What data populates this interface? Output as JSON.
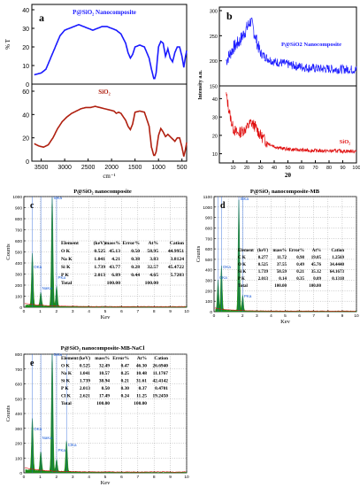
{
  "colors": {
    "nanocomposite": "#1a1aff",
    "sio2": "#b02010",
    "xrd_red": "#e01010",
    "eds_fill": "#1a8a1a",
    "eds_base": "#e01010",
    "peak_label": "#1a5ad8"
  },
  "chart_data": [
    {
      "id": "a",
      "type": "line",
      "panel_label": "a",
      "xlabel": "cm⁻¹",
      "ylabel": "% T",
      "xlim": [
        3700,
        400
      ],
      "x_ticks": [
        "3500",
        "3000",
        "2500",
        "2000",
        "1500",
        "1000",
        "500"
      ],
      "upper": {
        "label": "P@SiO₂ Nanocomposite",
        "ylim": [
          0,
          40
        ],
        "y_ticks": [
          "0",
          "10",
          "20",
          "30",
          "40"
        ],
        "series": [
          {
            "x": [
              3650,
              3500,
              3400,
              3300,
              3200,
              3100,
              3000,
              2900,
              2800,
              2700,
              2600,
              2500,
              2400,
              2300,
              2200,
              2100,
              2000,
              1900,
              1800,
              1700,
              1650,
              1600,
              1550,
              1500,
              1400,
              1300,
              1200,
              1150,
              1100,
              1080,
              1050,
              1000,
              950,
              900,
              850,
              800,
              750,
              700,
              650,
              600,
              550,
              500,
              460,
              430,
              400
            ],
            "y": [
              5,
              6,
              8,
              14,
              20,
              26,
              29,
              30,
              31,
              32,
              31,
              30,
              29,
              30,
              31,
              31,
              30,
              29,
              27,
              22,
              17,
              14,
              16,
              20,
              21,
              20,
              14,
              8,
              3,
              3,
              6,
              20,
              23,
              22,
              15,
              19,
              14,
              12,
              17,
              20,
              20,
              15,
              9,
              14,
              18
            ]
          }
        ]
      },
      "lower": {
        "label": "SiO₂",
        "ylim": [
          0,
          60
        ],
        "y_ticks": [
          "0",
          "20",
          "40",
          "60"
        ],
        "series": [
          {
            "x": [
              3650,
              3550,
              3450,
              3350,
              3250,
              3150,
              3050,
              2950,
              2850,
              2750,
              2650,
              2550,
              2450,
              2350,
              2250,
              2150,
              2050,
              1950,
              1900,
              1850,
              1800,
              1750,
              1700,
              1650,
              1600,
              1550,
              1500,
              1400,
              1300,
              1200,
              1150,
              1100,
              1080,
              1050,
              1000,
              950,
              900,
              850,
              800,
              750,
              700,
              650,
              600,
              550,
              500,
              460,
              430,
              400
            ],
            "y": [
              15,
              13,
              12,
              14,
              20,
              28,
              34,
              38,
              41,
              43,
              45,
              46,
              46,
              47,
              46,
              45,
              44,
              43,
              41,
              42,
              41,
              38,
              35,
              30,
              27,
              32,
              42,
              43,
              42,
              30,
              12,
              5,
              5,
              8,
              22,
              28,
              25,
              21,
              23,
              21,
              19,
              17,
              20,
              20,
              12,
              4,
              9,
              16
            ]
          }
        ]
      }
    },
    {
      "id": "b",
      "type": "line",
      "panel_label": "b",
      "xlabel": "2θ",
      "ylabel": "Intensity a.u.",
      "xlim": [
        0,
        100
      ],
      "x_ticks": [
        "10",
        "20",
        "30",
        "40",
        "50",
        "60",
        "70",
        "80",
        "90",
        "100"
      ],
      "upper": {
        "label": "P@SiO2 Nanocomposite",
        "y_ticks": [
          "150",
          "200",
          "250",
          "300"
        ],
        "series": [
          {
            "x": [
              5,
              10,
              15,
              20,
              23,
              25,
              28,
              30,
              35,
              40,
              45,
              50,
              55,
              60,
              65,
              70,
              75,
              80,
              85,
              90,
              95,
              100
            ],
            "y": [
              200,
              225,
              240,
              265,
              280,
              260,
              232,
              215,
              205,
              198,
              196,
              193,
              190,
              188,
              186,
              185,
              184,
              184,
              183,
              183,
              183,
              182
            ]
          }
        ]
      },
      "lower": {
        "label": "SiO₂",
        "y_ticks": [
          "10",
          "20",
          "30",
          "40"
        ],
        "series": [
          {
            "x": [
              5,
              8,
              10,
              13,
              16,
              20,
              23,
              26,
              30,
              35,
              40,
              45,
              50,
              55,
              60,
              65,
              70,
              75,
              80,
              85,
              90,
              95,
              100
            ],
            "y": [
              42,
              30,
              24,
              21,
              22,
              24,
              27,
              25,
              20,
              16,
              14,
              13,
              12.5,
              12.2,
              12,
              11.8,
              11.7,
              11.6,
              11.5,
              11.5,
              11.4,
              11.4,
              11.4
            ]
          }
        ]
      }
    },
    {
      "id": "c",
      "type": "bar",
      "panel_label": "c",
      "title": "P@SiO₂ nanocomposite",
      "xlabel": "Kev",
      "ylabel": "Counts",
      "xlim": [
        0,
        10
      ],
      "ylim": [
        0,
        1000
      ],
      "x_ticks": [
        "1",
        "2",
        "3",
        "4",
        "5",
        "6",
        "7",
        "8",
        "9",
        "10"
      ],
      "y_ticks": [
        "100",
        "200",
        "300",
        "400",
        "500",
        "600",
        "700",
        "800",
        "900",
        "1000"
      ],
      "peaks": [
        {
          "label": "OKa",
          "kev": 0.52,
          "counts": 470
        },
        {
          "label": "NaKa",
          "kev": 1.04,
          "counts": 120
        },
        {
          "label": "SiKa",
          "kev": 1.74,
          "counts": 980
        },
        {
          "label": "PKa",
          "kev": 2.01,
          "counts": 180
        }
      ],
      "table": {
        "headers": [
          "Element",
          "(keV)",
          "mass%",
          "Error%",
          "At%",
          "Cation"
        ],
        "rows": [
          [
            "O K",
            "0.525",
            "45.13",
            "0.50",
            "58.95",
            "44.9951"
          ],
          [
            "Na K",
            "1.041",
            "4.21",
            "0.38",
            "3.83",
            "3.8124"
          ],
          [
            "Si K",
            "1.739",
            "43.77",
            "0.28",
            "32.57",
            "45.4722"
          ],
          [
            "P K",
            "2.013",
            "6.89",
            "0.44",
            "4.65",
            "5.7203"
          ],
          [
            "Total",
            "",
            "100.00",
            "",
            "100.00",
            ""
          ]
        ]
      }
    },
    {
      "id": "d",
      "type": "bar",
      "panel_label": "d",
      "title": "P@SiO₂ nanocomposite-MB",
      "xlabel": "Kev",
      "ylabel": "Counts",
      "xlim": [
        0,
        10
      ],
      "ylim": [
        0,
        1100
      ],
      "x_ticks": [
        "1",
        "2",
        "3",
        "4",
        "5",
        "6",
        "7",
        "8",
        "9",
        "10"
      ],
      "y_ticks": [
        "100",
        "200",
        "300",
        "400",
        "500",
        "600",
        "700",
        "800",
        "900",
        "1000",
        "1100"
      ],
      "peaks": [
        {
          "label": "CKa",
          "kev": 0.28,
          "counts": 280
        },
        {
          "label": "OKa",
          "kev": 0.52,
          "counts": 420
        },
        {
          "label": "SiKa",
          "kev": 1.74,
          "counts": 1060
        },
        {
          "label": "PKa",
          "kev": 2.01,
          "counts": 150
        }
      ],
      "table": {
        "headers": [
          "Element",
          "(keV)",
          "mass%",
          "Error%",
          "At%",
          "Cation"
        ],
        "rows": [
          [
            "C K",
            "0.277",
            "11.72",
            "0.98",
            "19.05",
            "1.2569"
          ],
          [
            "O K",
            "0.525",
            "37.55",
            "0.49",
            "45.76",
            "34.4440"
          ],
          [
            "Si K",
            "1.739",
            "50.59",
            "0.21",
            "35.12",
            "64.1673"
          ],
          [
            "P K",
            "2.013",
            "0.14",
            "0.35",
            "0.09",
            "0.1318"
          ],
          [
            "Total",
            "",
            "100.00",
            "",
            "100.00",
            ""
          ]
        ]
      }
    },
    {
      "id": "e",
      "type": "bar",
      "panel_label": "e",
      "title": "P@SiO₂ nanocomposite-MB-NaCl",
      "xlabel": "Kev",
      "ylabel": "Counts",
      "xlim": [
        0,
        10
      ],
      "ylim": [
        0,
        800
      ],
      "x_ticks": [
        "1",
        "2",
        "3",
        "4",
        "5",
        "6",
        "7",
        "8",
        "9",
        "10"
      ],
      "y_ticks": [
        "100",
        "200",
        "300",
        "400",
        "500",
        "600",
        "700",
        "800"
      ],
      "peaks": [
        {
          "label": "OKa",
          "kev": 0.52,
          "counts": 350
        },
        {
          "label": "NaKa",
          "kev": 1.04,
          "counts": 130
        },
        {
          "label": "SiKa",
          "kev": 1.74,
          "counts": 790
        },
        {
          "label": "PKa",
          "kev": 2.01,
          "counts": 80
        },
        {
          "label": "ClKa",
          "kev": 2.62,
          "counts": 210
        }
      ],
      "table": {
        "headers": [
          "Element",
          "(keV)",
          "mass%",
          "Error%",
          "At%",
          "Cation"
        ],
        "rows": [
          [
            "O K",
            "0.525",
            "32.49",
            "0.47",
            "46.30",
            "26.6940"
          ],
          [
            "Na K",
            "1.041",
            "10.57",
            "0.25",
            "10.48",
            "11.1767"
          ],
          [
            "Si K",
            "1.739",
            "38.94",
            "0.21",
            "31.61",
            "42.4142"
          ],
          [
            "P K",
            "2.013",
            "0.50",
            "0.30",
            "0.37",
            "0.4701"
          ],
          [
            "Cl K",
            "2.621",
            "17.49",
            "0.24",
            "11.25",
            "19.2450"
          ],
          [
            "Total",
            "",
            "100.00",
            "",
            "100.00",
            ""
          ]
        ]
      }
    }
  ]
}
